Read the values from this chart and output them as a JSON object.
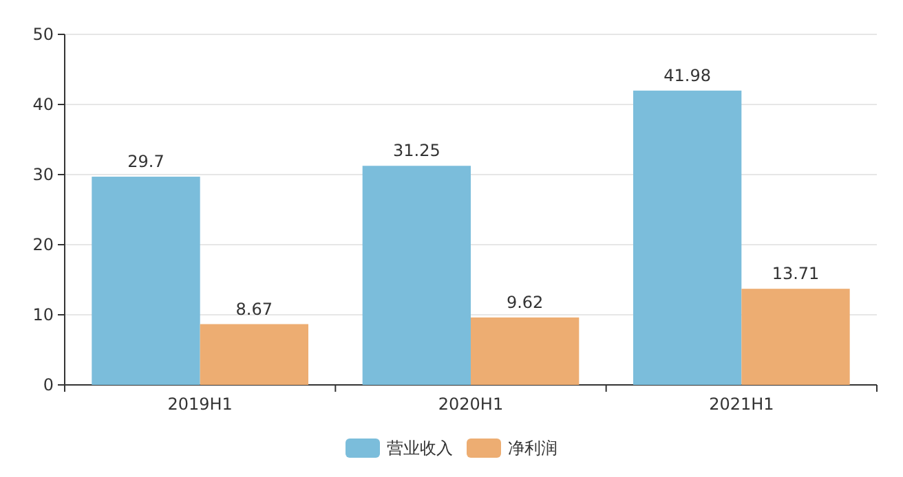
{
  "chart_data": {
    "type": "bar",
    "categories": [
      "2019H1",
      "2020H1",
      "2021H1"
    ],
    "series": [
      {
        "name": "营业收入",
        "color": "#7bbddb",
        "values": [
          29.7,
          31.25,
          41.98
        ]
      },
      {
        "name": "净利润",
        "color": "#edad72",
        "values": [
          8.67,
          9.62,
          13.71
        ]
      }
    ],
    "ylim": [
      0,
      50
    ],
    "yticks": [
      0,
      10,
      20,
      30,
      40,
      50
    ],
    "grid": "y",
    "data_labels": true,
    "legend": "bottom"
  }
}
